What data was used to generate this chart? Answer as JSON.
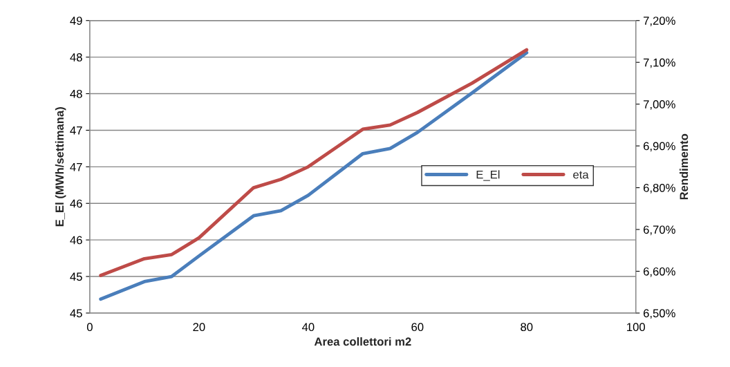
{
  "chart_data": {
    "type": "line",
    "xlabel": "Area collettori m2",
    "ylabel": "E_El (MWh/settimana)",
    "y2label": "Rendimento",
    "x": [
      2,
      10,
      15,
      20,
      30,
      35,
      40,
      50,
      55,
      60,
      70,
      80
    ],
    "series": [
      {
        "name": "E_El",
        "color": "#4a7ebb",
        "values": [
          45.19,
          45.43,
          45.5,
          45.78,
          46.33,
          46.4,
          46.61,
          47.18,
          47.25,
          47.47,
          48.01,
          48.56
        ]
      },
      {
        "name": "eta",
        "color": "#be4b48",
        "axis": "y2",
        "values": [
          6.59,
          6.63,
          6.64,
          6.68,
          6.8,
          6.82,
          6.85,
          6.94,
          6.95,
          6.98,
          7.05,
          7.13
        ]
      }
    ],
    "xlim": [
      0,
      100
    ],
    "xticks": [
      0,
      20,
      40,
      60,
      80,
      100
    ],
    "ylim": [
      45,
      49
    ],
    "yticks": [
      {
        "value": 45,
        "label": "45"
      },
      {
        "value": 45.5,
        "label": "45"
      },
      {
        "value": 46,
        "label": "46"
      },
      {
        "value": 46.5,
        "label": "46"
      },
      {
        "value": 47,
        "label": "47"
      },
      {
        "value": 47.5,
        "label": "47"
      },
      {
        "value": 48,
        "label": "48"
      },
      {
        "value": 48.5,
        "label": "48"
      },
      {
        "value": 49,
        "label": "49"
      }
    ],
    "y2lim": [
      6.5,
      7.2
    ],
    "y2ticks": [
      {
        "value": 6.5,
        "label": "6,50%"
      },
      {
        "value": 6.6,
        "label": "6,60%"
      },
      {
        "value": 6.7,
        "label": "6,70%"
      },
      {
        "value": 6.8,
        "label": "6,80%"
      },
      {
        "value": 6.9,
        "label": "6,90%"
      },
      {
        "value": 7.0,
        "label": "7,00%"
      },
      {
        "value": 7.1,
        "label": "7,10%"
      },
      {
        "value": 7.2,
        "label": "7,20%"
      }
    ],
    "grid": "y",
    "legend": "right",
    "marker": "none",
    "line_style": "solid"
  }
}
